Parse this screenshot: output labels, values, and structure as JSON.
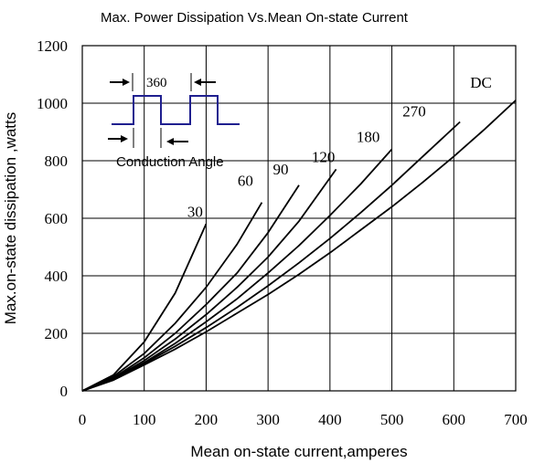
{
  "chart_data": {
    "type": "line",
    "title": "Max. Power Dissipation Vs.Mean On-state Current",
    "xlabel": "Mean on-state current,amperes",
    "ylabel": "Max.on-state dissipation ,watts",
    "xlim": [
      0,
      700
    ],
    "ylim": [
      0,
      1200
    ],
    "x_ticks": [
      "0",
      "100",
      "200",
      "300",
      "400",
      "500",
      "600",
      "700"
    ],
    "y_ticks": [
      "0",
      "200",
      "400",
      "600",
      "800",
      "1000",
      "1200"
    ],
    "grid": true,
    "legend": "none",
    "series": [
      {
        "name": "30",
        "x": [
          0,
          50,
          100,
          150,
          200
        ],
        "y": [
          0,
          55,
          170,
          340,
          580
        ]
      },
      {
        "name": "60",
        "x": [
          0,
          50,
          100,
          150,
          200,
          250,
          290
        ],
        "y": [
          0,
          50,
          130,
          235,
          360,
          510,
          655
        ]
      },
      {
        "name": "90",
        "x": [
          0,
          50,
          100,
          150,
          200,
          250,
          300,
          350
        ],
        "y": [
          0,
          45,
          115,
          200,
          300,
          410,
          550,
          715
        ]
      },
      {
        "name": "120",
        "x": [
          0,
          50,
          100,
          150,
          200,
          250,
          300,
          350,
          410
        ],
        "y": [
          0,
          42,
          105,
          180,
          265,
          360,
          465,
          590,
          770
        ]
      },
      {
        "name": "180",
        "x": [
          0,
          50,
          100,
          150,
          200,
          250,
          300,
          350,
          400,
          450,
          500
        ],
        "y": [
          0,
          40,
          98,
          165,
          240,
          320,
          410,
          505,
          610,
          720,
          840
        ]
      },
      {
        "name": "270",
        "x": [
          0,
          50,
          100,
          150,
          200,
          250,
          300,
          350,
          400,
          450,
          500,
          550,
          610
        ],
        "y": [
          0,
          38,
          95,
          155,
          220,
          290,
          365,
          445,
          530,
          620,
          715,
          815,
          935
        ]
      },
      {
        "name": "DC",
        "x": [
          0,
          50,
          100,
          150,
          200,
          250,
          300,
          350,
          400,
          450,
          500,
          550,
          600,
          650,
          700
        ],
        "y": [
          0,
          37,
          90,
          145,
          205,
          270,
          335,
          405,
          480,
          560,
          640,
          725,
          815,
          910,
          1010
        ]
      }
    ],
    "inset": {
      "period_label": "360",
      "conduction_label": "Conduction Angle"
    }
  }
}
